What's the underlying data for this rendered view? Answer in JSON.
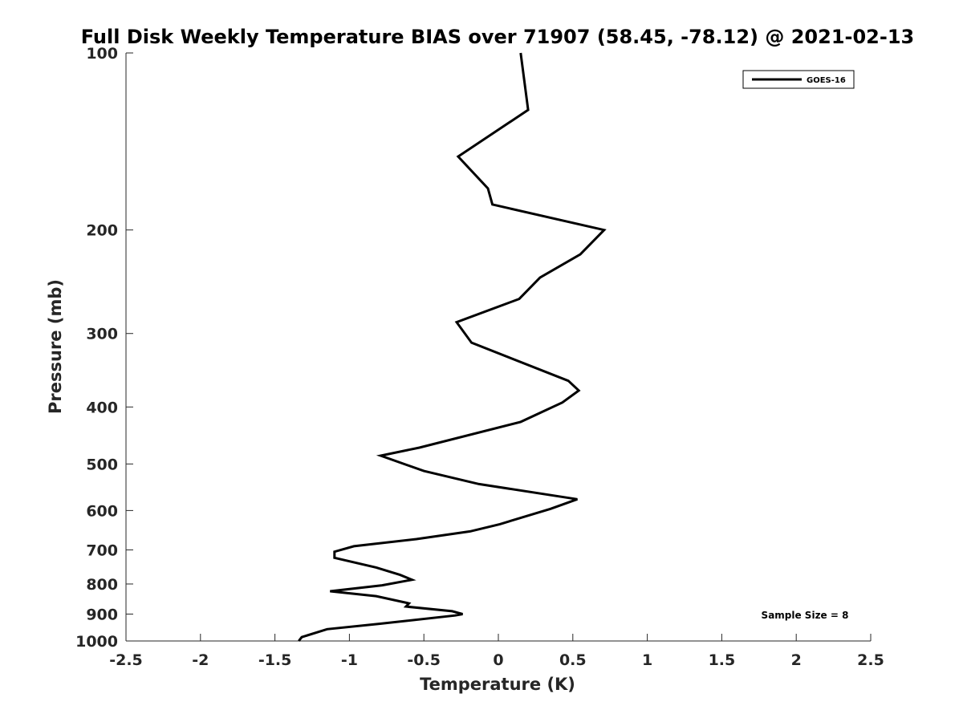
{
  "chart_data": {
    "type": "line",
    "title": "Full Disk Weekly Temperature BIAS over 71907 (58.45, -78.12) @ 2021-02-13",
    "xlabel": "Temperature (K)",
    "ylabel": "Pressure (mb)",
    "xlim": [
      -2.5,
      2.5
    ],
    "ylim": [
      1000,
      100
    ],
    "yscale": "log",
    "x_ticks": [
      "-2.5",
      "-2",
      "-1.5",
      "-1",
      "-0.5",
      "0",
      "0.5",
      "1",
      "1.5",
      "2",
      "2.5"
    ],
    "y_ticks": [
      "100",
      "200",
      "300",
      "400",
      "500",
      "600",
      "700",
      "800",
      "900",
      "1000"
    ],
    "grid": false,
    "legend": {
      "position": "top-right",
      "entries": [
        "GOES-16"
      ]
    },
    "annotations": [
      "Sample Size = 8"
    ],
    "series": [
      {
        "name": "GOES-16",
        "color": "#000000",
        "points": [
          [
            0.15,
            100
          ],
          [
            0.2,
            125
          ],
          [
            -0.27,
            150
          ],
          [
            -0.07,
            170
          ],
          [
            -0.04,
            181
          ],
          [
            0.71,
            200
          ],
          [
            0.55,
            220
          ],
          [
            0.28,
            241
          ],
          [
            0.14,
            262
          ],
          [
            -0.28,
            287
          ],
          [
            -0.18,
            311
          ],
          [
            0.47,
            361
          ],
          [
            0.54,
            375
          ],
          [
            0.43,
            393
          ],
          [
            0.15,
            424
          ],
          [
            -0.53,
            469
          ],
          [
            -0.79,
            484
          ],
          [
            -0.5,
            514
          ],
          [
            -0.13,
            541
          ],
          [
            0.53,
            574
          ],
          [
            0.35,
            596
          ],
          [
            0.01,
            633
          ],
          [
            -0.19,
            651
          ],
          [
            -0.55,
            671
          ],
          [
            -0.97,
            690
          ],
          [
            -1.1,
            705
          ],
          [
            -1.1,
            722
          ],
          [
            -0.82,
            750
          ],
          [
            -0.66,
            772
          ],
          [
            -0.58,
            787
          ],
          [
            -0.78,
            804
          ],
          [
            -1.13,
            823
          ],
          [
            -0.82,
            839
          ],
          [
            -0.6,
            863
          ],
          [
            -0.62,
            874
          ],
          [
            -0.31,
            890
          ],
          [
            -0.24,
            900
          ],
          [
            -0.29,
            905
          ],
          [
            -0.8,
            935
          ],
          [
            -1.15,
            955
          ],
          [
            -1.32,
            985
          ],
          [
            -1.34,
            1000
          ]
        ]
      }
    ]
  }
}
